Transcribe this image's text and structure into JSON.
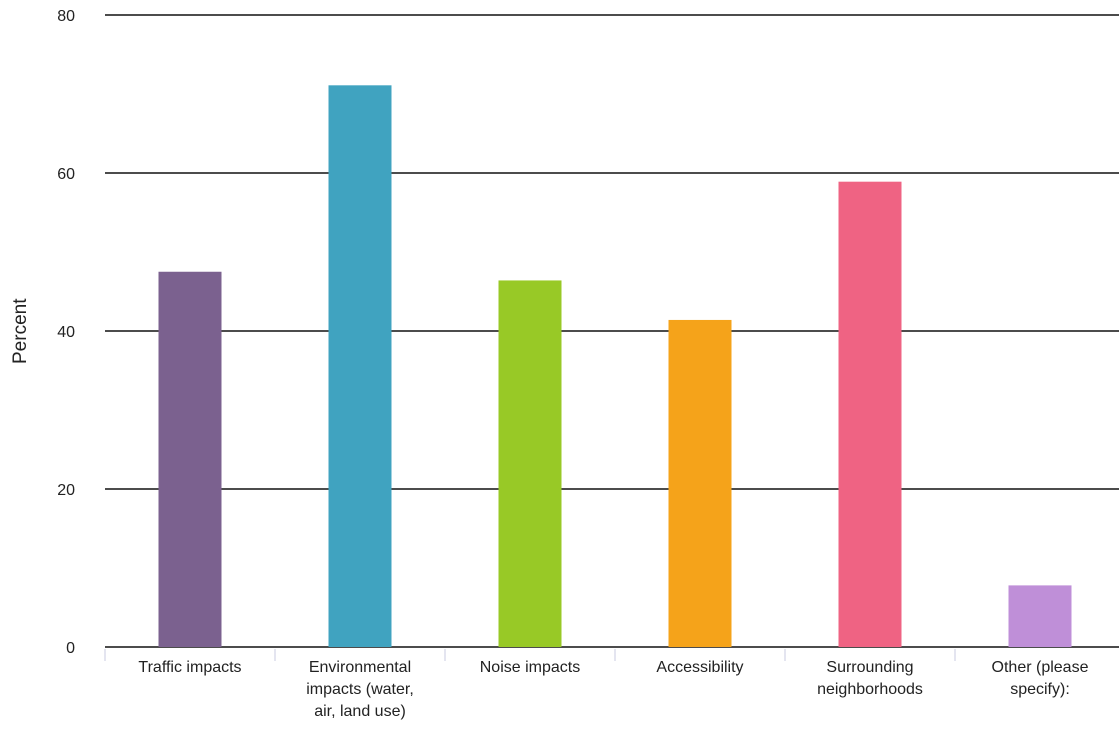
{
  "chart_data": {
    "type": "bar",
    "categories": [
      "Traffic impacts",
      "Environmental impacts (water, air, land use)",
      "Noise impacts",
      "Accessibility",
      "Surrounding neighborhoods",
      "Other (please specify):"
    ],
    "category_lines": [
      [
        "Traffic impacts"
      ],
      [
        "Environmental",
        "impacts (water,",
        "air, land use)"
      ],
      [
        "Noise impacts"
      ],
      [
        "Accessibility"
      ],
      [
        "Surrounding",
        "neighborhoods"
      ],
      [
        "Other (please",
        "specify):"
      ]
    ],
    "values": [
      47.5,
      71.1,
      46.4,
      41.4,
      58.9,
      7.8
    ],
    "colors": [
      "#7b618f",
      "#40a3c0",
      "#98c926",
      "#f5a31a",
      "#ef6383",
      "#bf8fd8"
    ],
    "ylabel": "Percent",
    "xlabel": "",
    "ylim": [
      0,
      80
    ],
    "yticks": [
      "0",
      "20",
      "40",
      "60",
      "80"
    ],
    "grid": true,
    "legend": "none"
  }
}
